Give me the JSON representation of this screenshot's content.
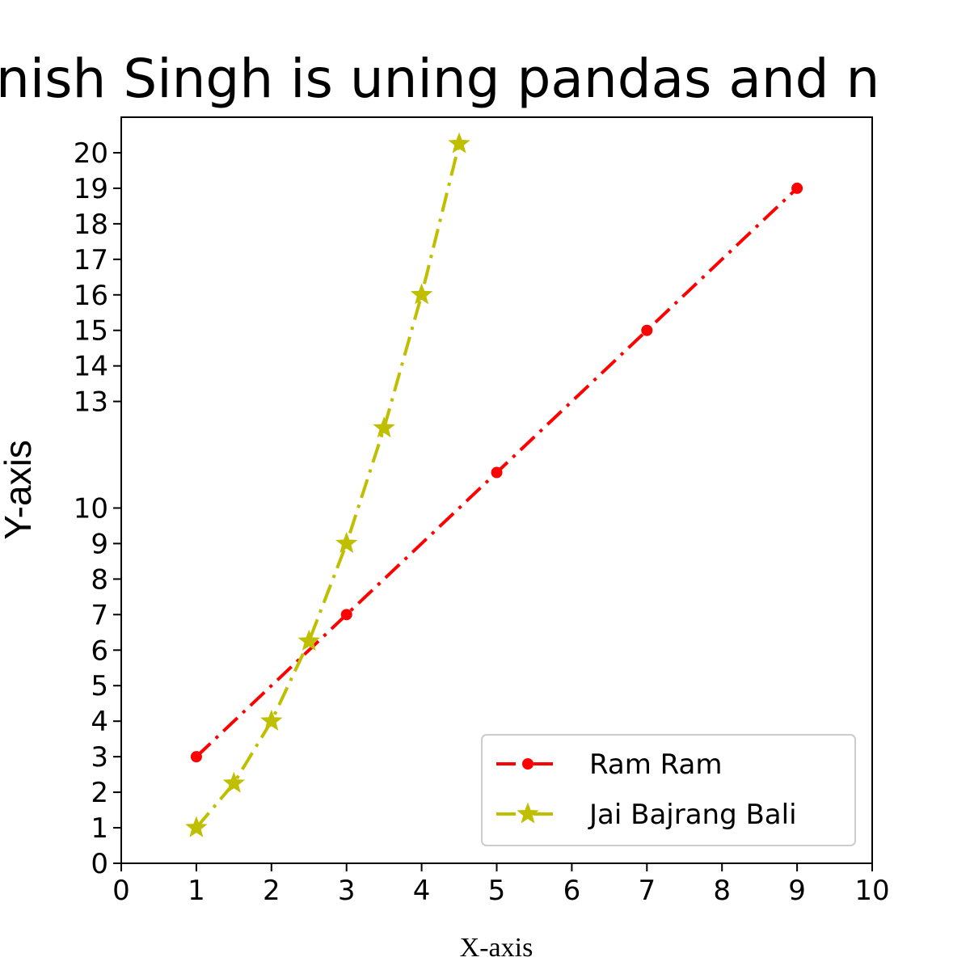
{
  "chart_data": {
    "type": "line",
    "title": "nish Singh is uning pandas and n",
    "xlabel": "X-axis",
    "ylabel": "Y-axis",
    "xlim": [
      0,
      10
    ],
    "ylim": [
      0,
      21
    ],
    "xticks": [
      0,
      1,
      2,
      3,
      4,
      5,
      6,
      7,
      8,
      9,
      10
    ],
    "yticks": [
      0,
      1,
      2,
      3,
      4,
      5,
      6,
      7,
      8,
      9,
      10,
      13,
      14,
      15,
      16,
      17,
      18,
      19,
      20
    ],
    "grid": false,
    "legend_position": "lower-right",
    "series": [
      {
        "name": "Ram Ram",
        "color": "#ff0000",
        "marker": "circle",
        "linestyle": "dashdot",
        "x": [
          1,
          3,
          5,
          7,
          9
        ],
        "y": [
          3,
          7,
          11,
          15,
          19
        ]
      },
      {
        "name": "Jai Bajrang Bali",
        "color": "#bfbf00",
        "marker": "star",
        "linestyle": "dashdot",
        "x": [
          1,
          1.5,
          2,
          2.5,
          3,
          3.5,
          4,
          4.5
        ],
        "y": [
          1,
          2.25,
          4,
          6.25,
          9,
          12.25,
          16,
          20.25
        ]
      }
    ]
  }
}
